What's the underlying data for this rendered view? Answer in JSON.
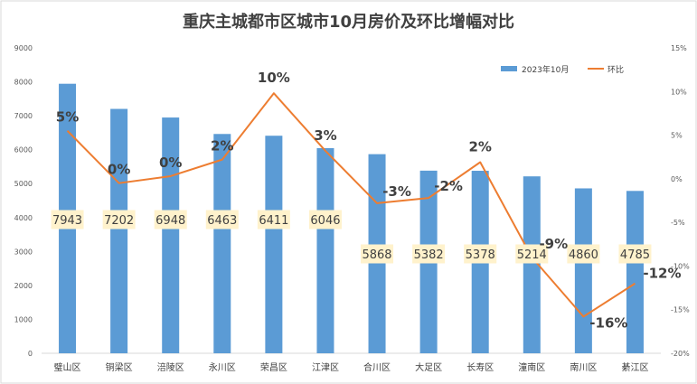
{
  "chart_data": {
    "type": "bar",
    "title": "重庆主城都市区城市10月房价及环比增幅对比",
    "categories": [
      "璧山区",
      "铜梁区",
      "涪陵区",
      "永川区",
      "荣昌区",
      "江津区",
      "合川区",
      "大足区",
      "长寿区",
      "潼南区",
      "南川区",
      "綦江区"
    ],
    "series": [
      {
        "name": "2023年10月",
        "type": "bar",
        "axis": "left",
        "color": "#5B9BD5",
        "values": [
          7943,
          7202,
          6948,
          6463,
          6411,
          6046,
          5868,
          5382,
          5378,
          5214,
          4860,
          4785
        ],
        "labels": [
          "7943",
          "7202",
          "6948",
          "6463",
          "6411",
          "6046",
          "5868",
          "5382",
          "5378",
          "5214",
          "4860",
          "4785"
        ]
      },
      {
        "name": "环比",
        "type": "line",
        "axis": "right",
        "color": "#ED7D31",
        "values": [
          5.5,
          -0.5,
          0.3,
          2.2,
          9.8,
          3.2,
          -2.8,
          -2.2,
          1.9,
          -9.0,
          -15.8,
          -12.0
        ],
        "labels": [
          "5%",
          "0%",
          "0%",
          "2%",
          "10%",
          "3%",
          "-3%",
          "-2%",
          "2%",
          "-9%",
          "-16%",
          "-12%"
        ]
      }
    ],
    "left_axis": {
      "ylim": [
        0,
        9000
      ],
      "ticks": [
        "0",
        "1000",
        "2000",
        "3000",
        "4000",
        "5000",
        "6000",
        "7000",
        "8000",
        "9000"
      ]
    },
    "right_axis": {
      "ylim": [
        -20,
        15
      ],
      "ticks": [
        "-20%",
        "-15%",
        "-10%",
        "-5%",
        "0%",
        "5%",
        "10%",
        "15%"
      ]
    },
    "legend": {
      "position": "top-right",
      "entries": [
        "2023年10月",
        "环比"
      ]
    },
    "grid": false
  }
}
